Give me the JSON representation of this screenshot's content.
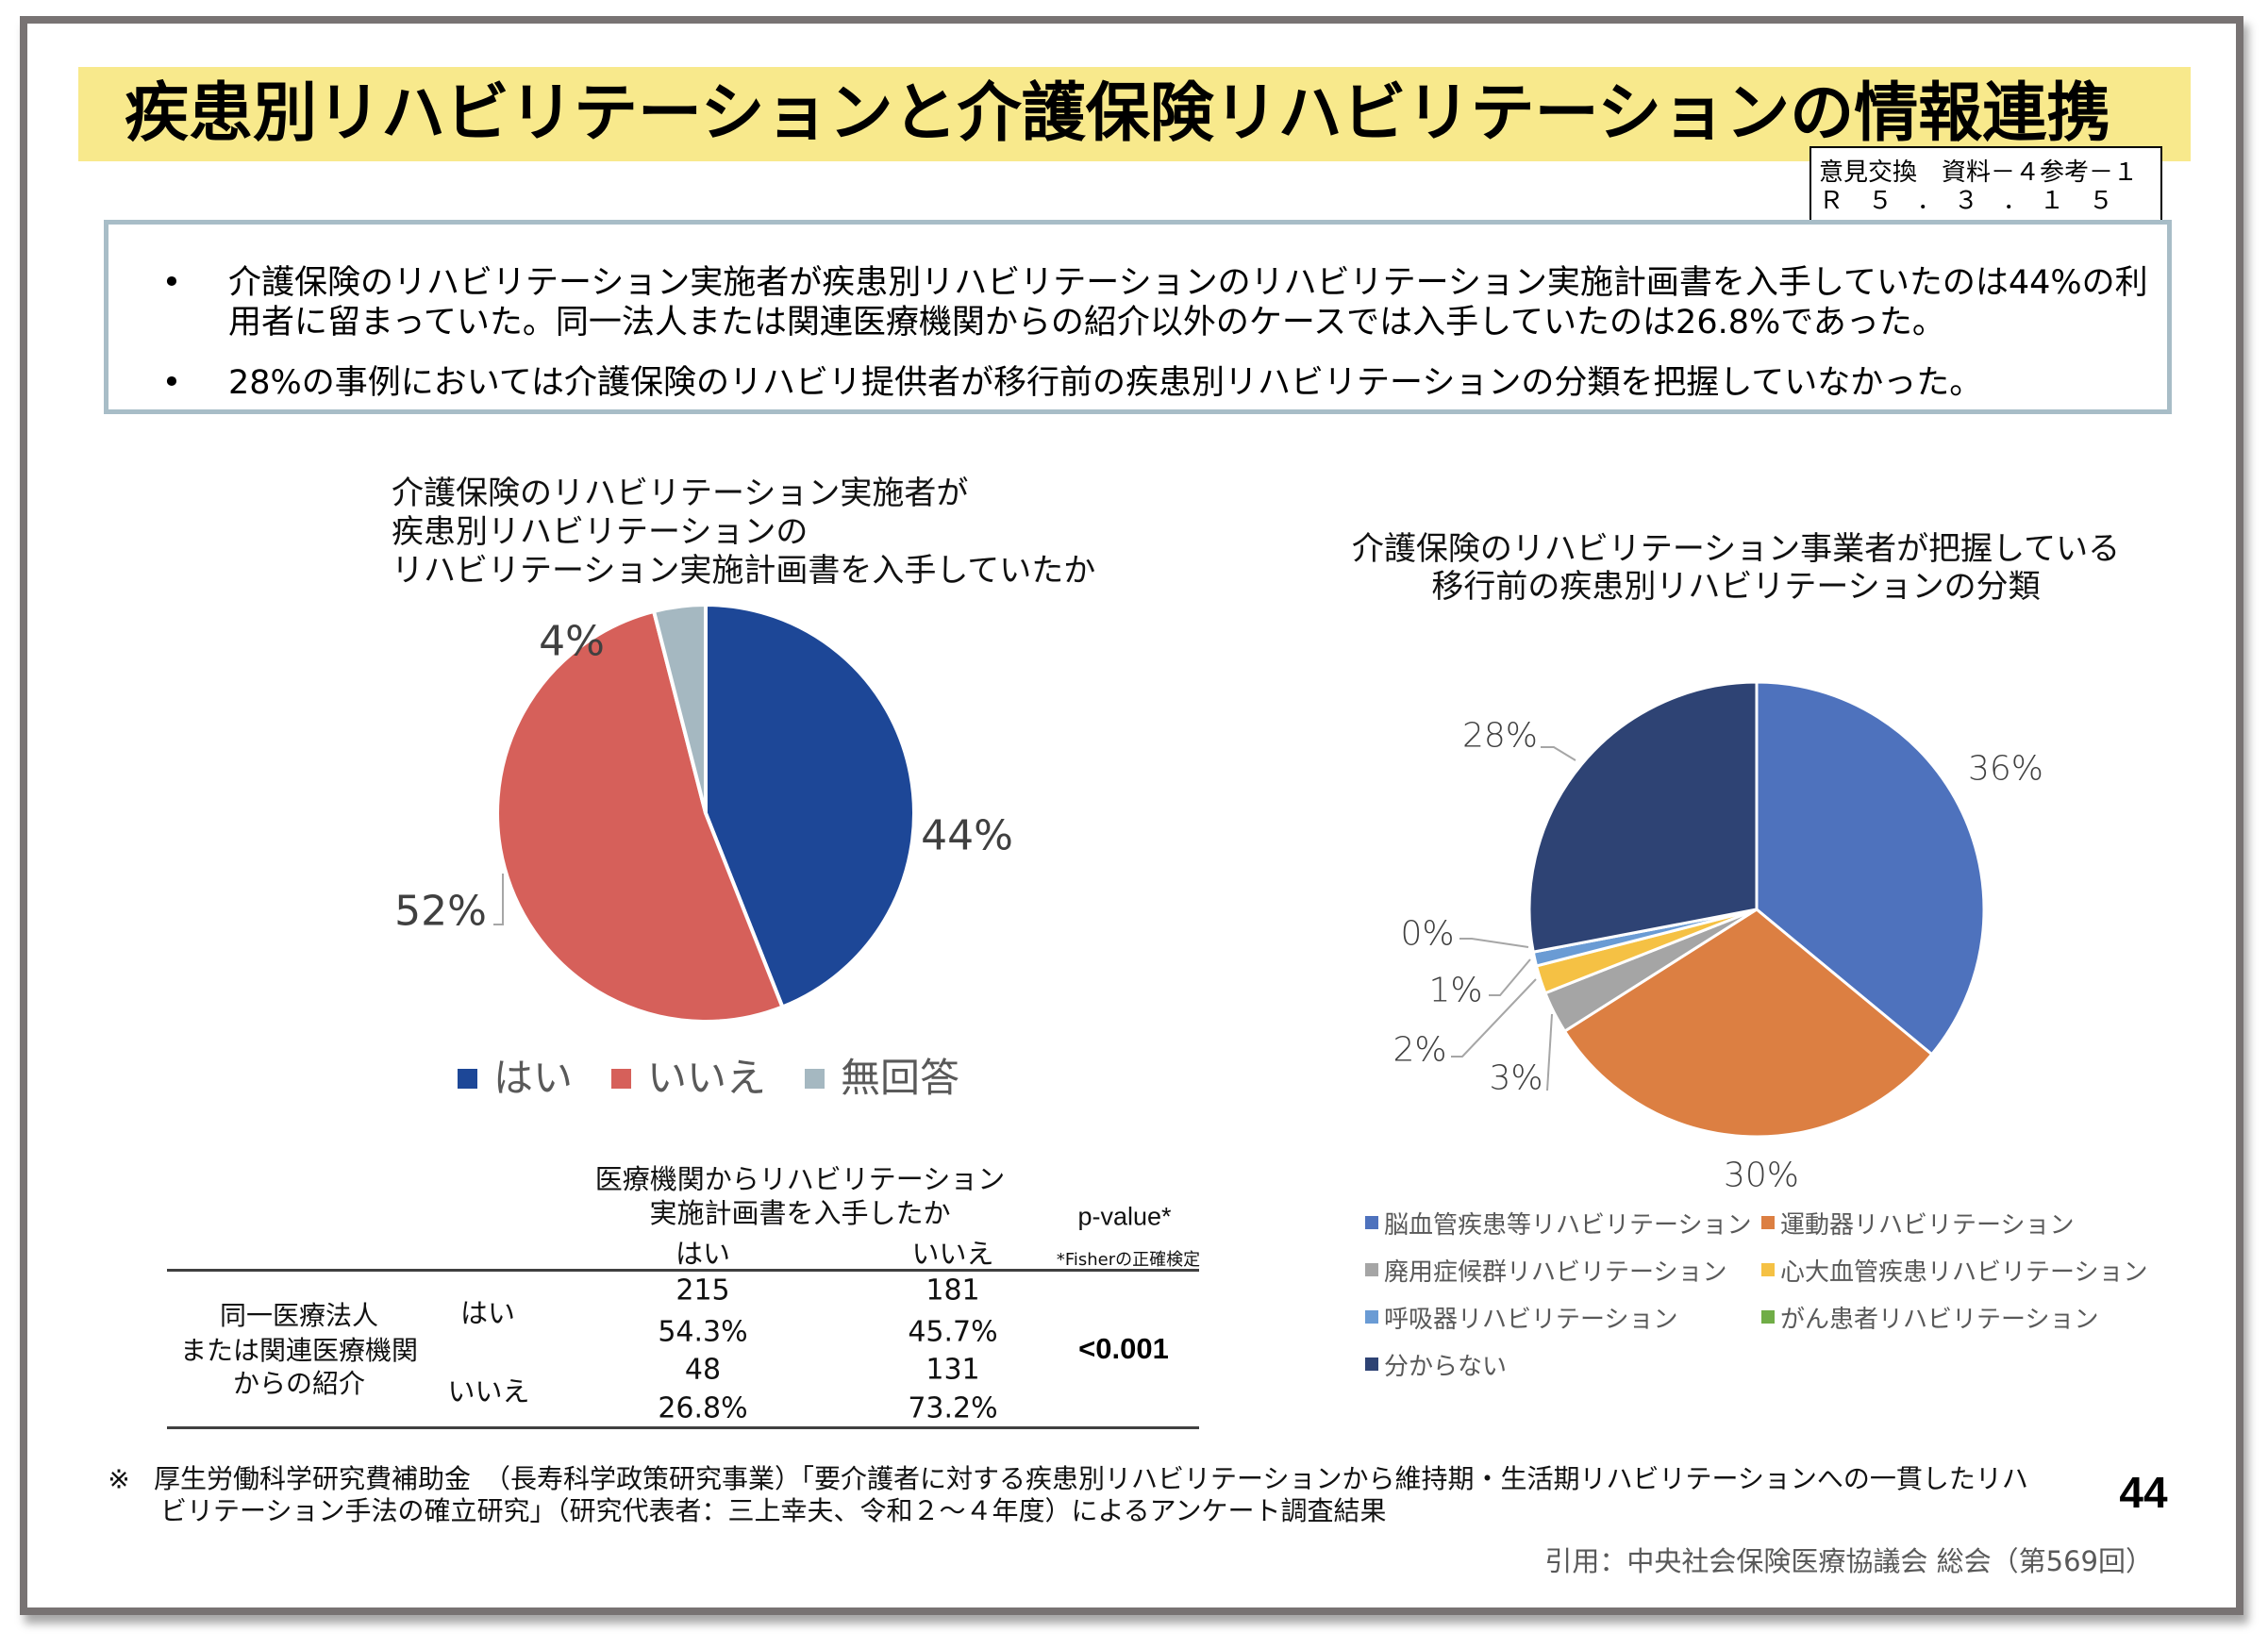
{
  "slide": {
    "title": "疾患別リハビリテーションと介護保険リハビリテーションの情報連携",
    "stamp": {
      "line1": "意見交換　資料－４参考－１",
      "line2": "Ｒ　５　．　３　．　１　５"
    },
    "page_number": "44"
  },
  "summary": {
    "bullet_icon": "•",
    "bullets": [
      {
        "lines": [
          "介護保険のリハビリテーション実施者が疾患別リハビリテーションのリハビリテーション実施計画書を入手していたのは44%の利",
          "用者に留まっていた。同一法人または関連医療機関からの紹介以外のケースでは入手していたのは26.8%であった。"
        ]
      },
      {
        "lines": [
          "28%の事例においては介護保険のリハビリ提供者が移行前の疾患別リハビリテーションの分類を把握していなかった。"
        ]
      }
    ]
  },
  "chart_data": [
    {
      "type": "pie",
      "title": "介護保険のリハビリテーション実施者が疾患別リハビリテーションのリハビリテーション実施計画書を入手していたか",
      "title_lines": [
        "介護保険のリハビリテーション実施者が",
        "疾患別リハビリテーションの",
        "リハビリテーション実施計画書を入手していたか"
      ],
      "categories": [
        "はい",
        "いいえ",
        "無回答"
      ],
      "values": [
        44,
        52,
        4
      ],
      "unit": "%",
      "labels": [
        "44%",
        "52%",
        "4%"
      ],
      "colors": [
        "#1d4797",
        "#d6605a",
        "#a5b8c1"
      ],
      "legend": "bottom"
    },
    {
      "type": "pie",
      "title": "介護保険のリハビリテーション事業者が把握している移行前の疾患別リハビリテーションの分類",
      "title_lines": [
        "介護保険のリハビリテーション事業者が把握している",
        "移行前の疾患別リハビリテーションの分類"
      ],
      "categories": [
        "脳血管疾患等リハビリテーション",
        "運動器リハビリテーション",
        "廃用症候群リハビリテーション",
        "心大血管疾患リハビリテーション",
        "呼吸器リハビリテーション",
        "がん患者リハビリテーション",
        "分からない"
      ],
      "values": [
        36,
        30,
        3,
        2,
        1,
        0,
        28
      ],
      "unit": "%",
      "labels": [
        "36%",
        "30%",
        "3%",
        "2%",
        "1%",
        "0%",
        "28%"
      ],
      "colors": [
        "#4e72bd",
        "#dc7f42",
        "#a5a5a5",
        "#f5c144",
        "#6a9bd4",
        "#70ad47",
        "#2e4374"
      ],
      "legend": "bottom"
    },
    {
      "type": "table",
      "title_lines": [
        "医療機関からリハビリテーション",
        "実施計画書を入手したか"
      ],
      "columns": [
        "はい",
        "いいえ"
      ],
      "row_group_label_lines": [
        "同一医療法人",
        "または関連医療機関",
        "からの紹介"
      ],
      "rows": [
        {
          "label": "はい",
          "counts": [
            215,
            181
          ],
          "percents": [
            "54.3%",
            "45.7%"
          ]
        },
        {
          "label": "いいえ",
          "counts": [
            48,
            131
          ],
          "percents": [
            "26.8%",
            "73.2%"
          ]
        }
      ],
      "pvalue_header": "p-value*",
      "pvalue_note": "*Fisherの正確検定",
      "pvalue": "<0.001"
    }
  ],
  "footer": {
    "note_mark": "※",
    "note_lines": [
      "厚生労働科学研究費補助金　（長寿科学政策研究事業）「要介護者に対する疾患別リハビリテーションから維持期・生活期リハビリテーションへの一貫したリハ",
      "ビリテーション手法の確立研究」（研究代表者：三上幸夫、令和２～４年度）によるアンケート調査結果"
    ],
    "citation": "引用：中央社会保険医療協議会 総会（第569回）"
  }
}
